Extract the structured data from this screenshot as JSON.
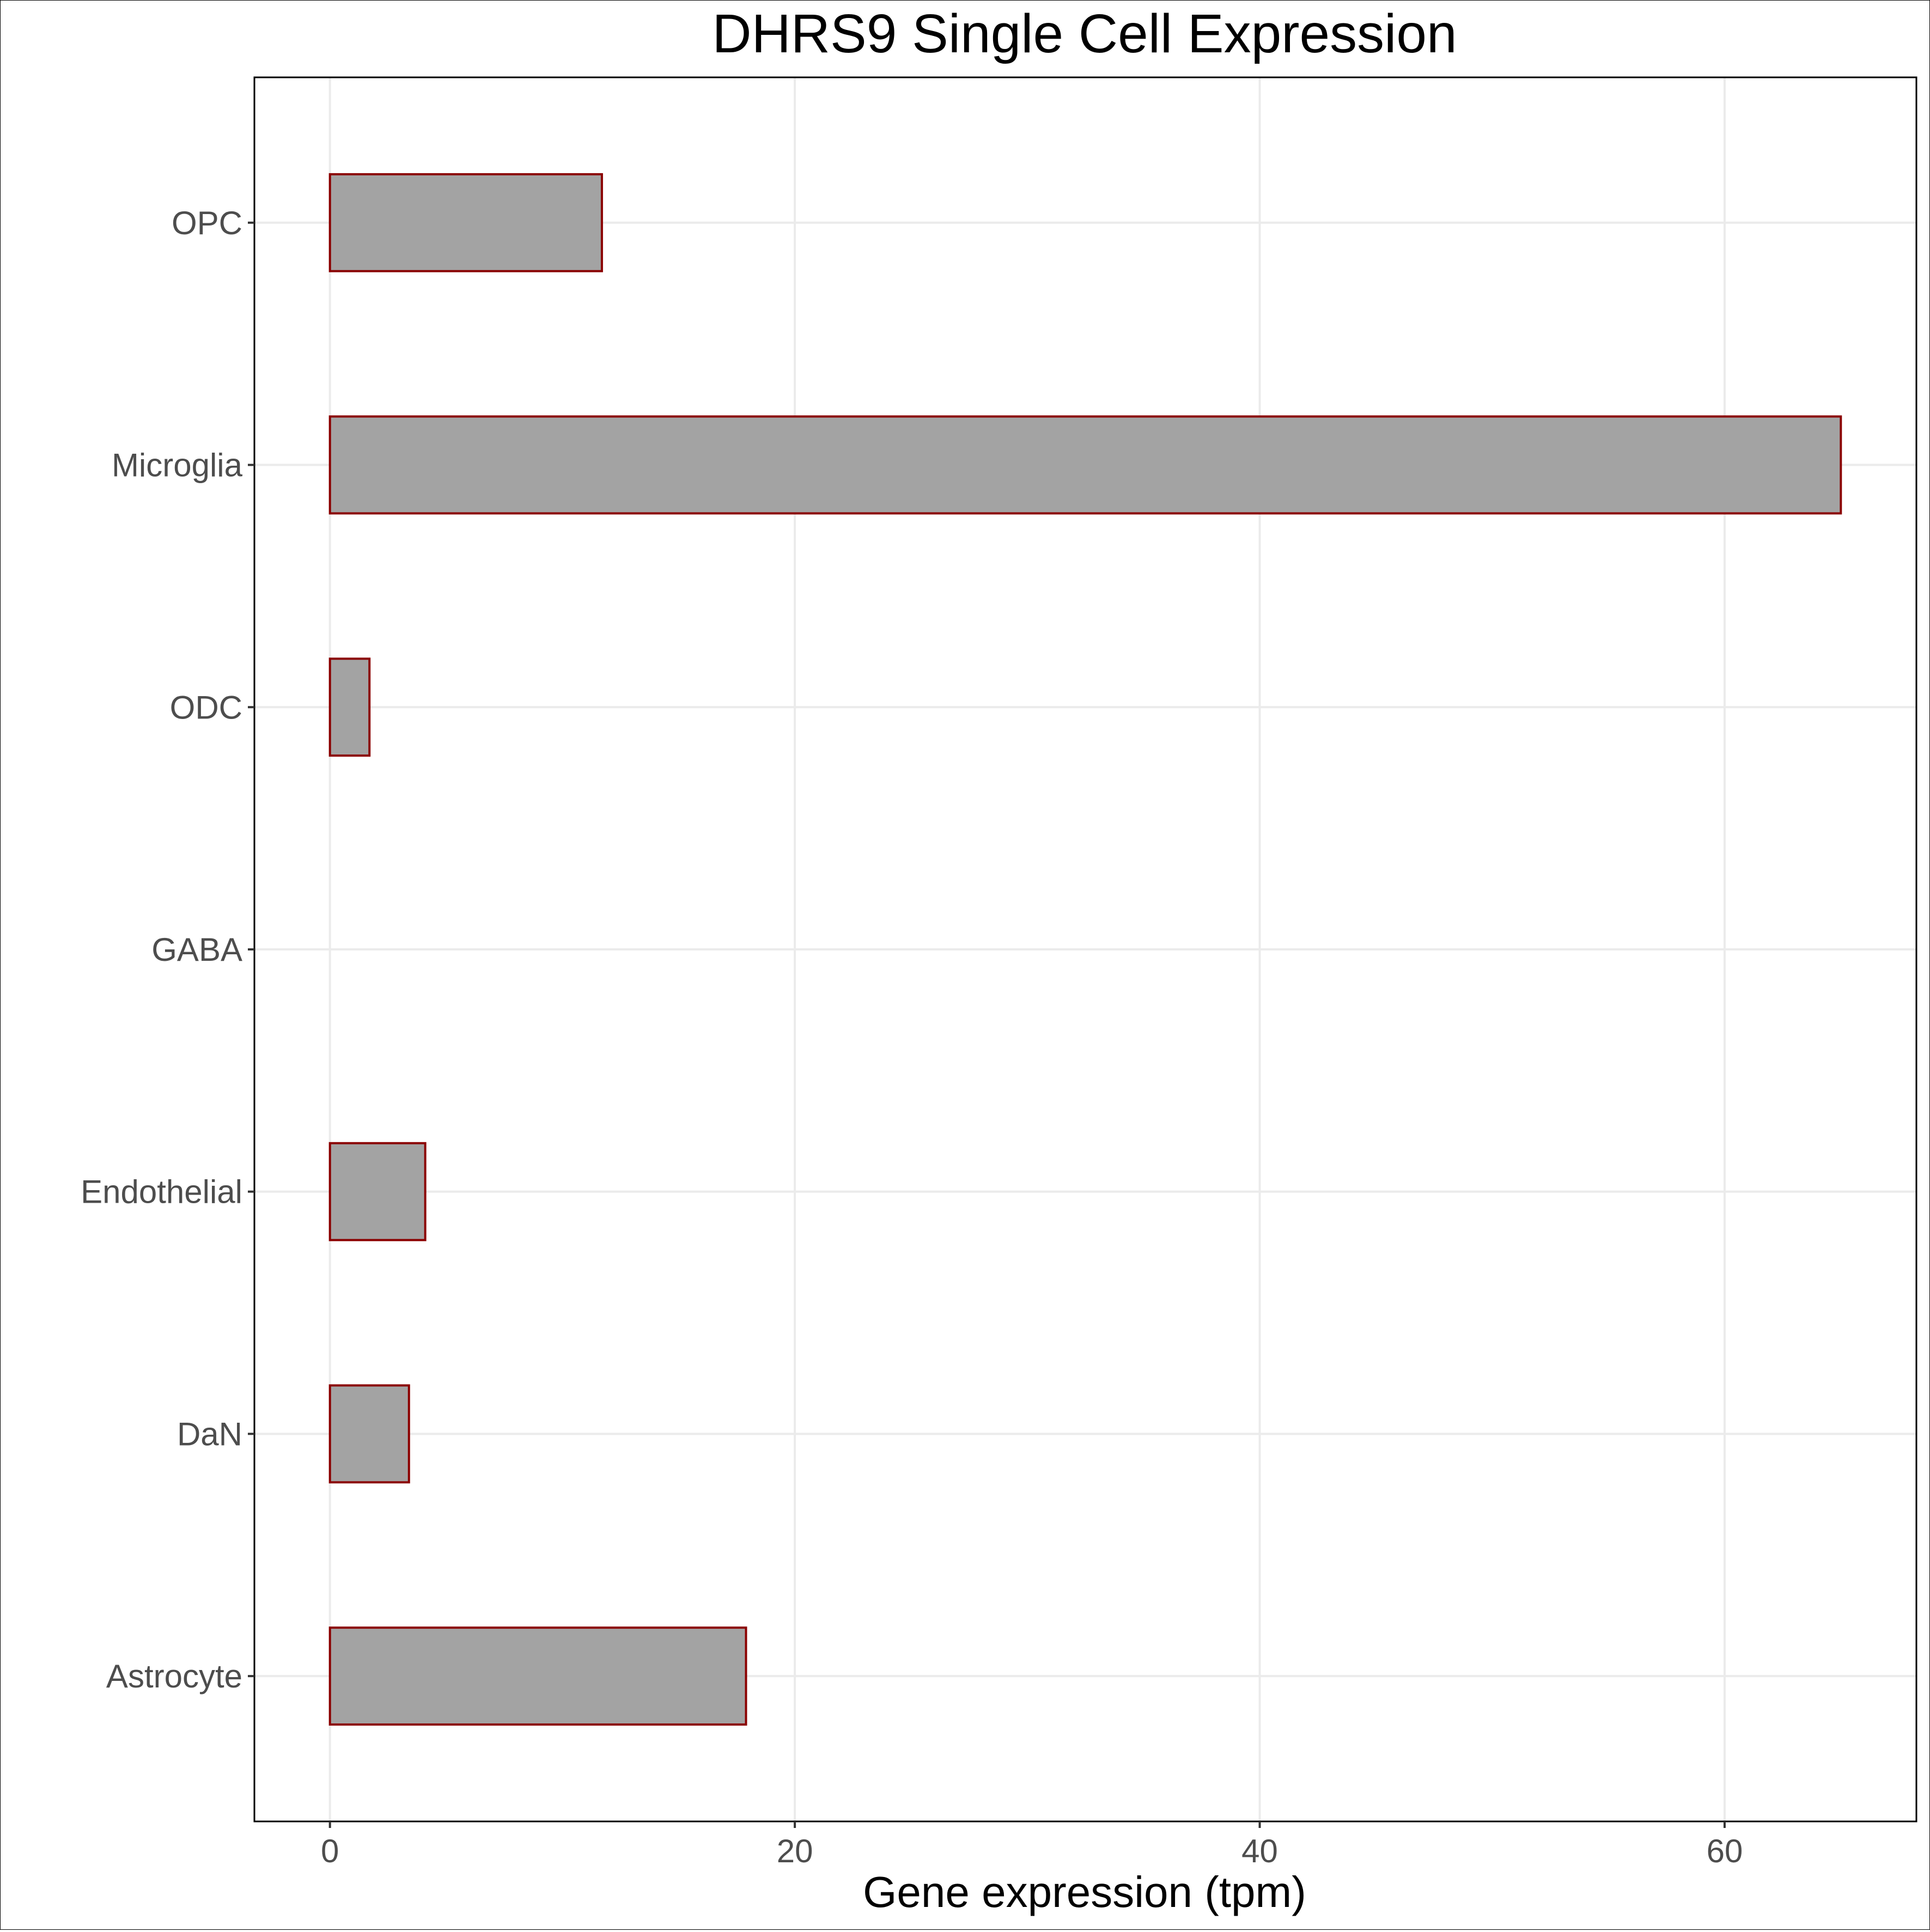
{
  "chart_data": {
    "type": "bar",
    "orientation": "horizontal",
    "title": "DHRS9 Single Cell Expression",
    "xlabel": "Gene expression (tpm)",
    "ylabel": "",
    "categories": [
      "Astrocyte",
      "DaN",
      "Endothelial",
      "GABA",
      "ODC",
      "Microglia",
      "OPC"
    ],
    "values": [
      17.9,
      3.4,
      4.1,
      0.0,
      1.7,
      65.0,
      11.7
    ],
    "xlim": [
      -3.25,
      68.25
    ],
    "xticks": [
      0,
      20,
      40,
      60
    ],
    "xtick_labels": [
      "0",
      "20",
      "40",
      "60"
    ],
    "grid": true,
    "colors": {
      "bar_fill": "#a3a3a3",
      "bar_stroke": "#8b0000",
      "grid": "#ebebeb"
    }
  }
}
